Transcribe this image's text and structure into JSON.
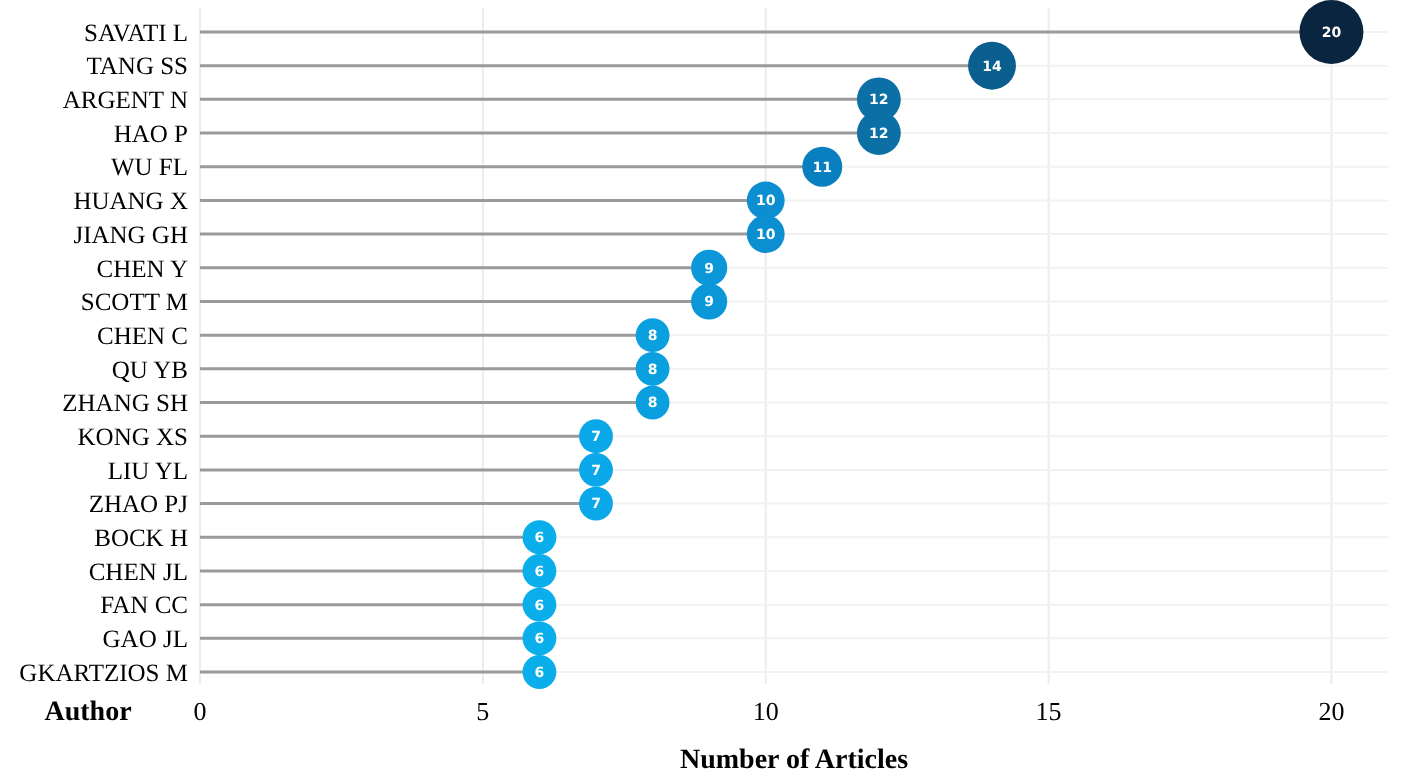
{
  "chart_data": {
    "type": "lollipop",
    "orientation": "horizontal",
    "xlabel": "Number of Articles",
    "ylabel": "Author",
    "categories": [
      "SAVATI L",
      "TANG SS",
      "ARGENT N",
      "HAO P",
      "WU FL",
      "HUANG X",
      "JIANG GH",
      "CHEN Y",
      "SCOTT M",
      "CHEN C",
      "QU YB",
      "ZHANG SH",
      "KONG XS",
      "LIU YL",
      "ZHAO PJ",
      "BOCK H",
      "CHEN JL",
      "FAN CC",
      "GAO JL",
      "GKARTZIOS M"
    ],
    "values": [
      20,
      14,
      12,
      12,
      11,
      10,
      10,
      9,
      9,
      8,
      8,
      8,
      7,
      7,
      7,
      6,
      6,
      6,
      6,
      6
    ],
    "sizes": [
      1,
      0.56,
      0.47,
      0.47,
      0.39,
      0.35,
      0.35,
      0.32,
      0.32,
      0.28,
      0.28,
      0.28,
      0.28,
      0.28,
      0.28,
      0.28,
      0.28,
      0.28,
      0.28,
      0.28
    ],
    "colors": [
      "#0a2540",
      "#0b5f8f",
      "#0c6fa5",
      "#0c6fa5",
      "#0a7fbf",
      "#0b8fd0",
      "#0b8fd0",
      "#0b97d8",
      "#0b97d8",
      "#0aa0e0",
      "#0aa0e0",
      "#0aa0e0",
      "#0aa8e8",
      "#0aa8e8",
      "#0aa8e8",
      "#0aaeea",
      "#0aaeea",
      "#0aaeea",
      "#0aaeea",
      "#0aaeea"
    ],
    "xlim": [
      0,
      21
    ],
    "xticks": [
      0,
      5,
      10,
      15,
      20
    ],
    "grid": true,
    "data_labels": true
  }
}
